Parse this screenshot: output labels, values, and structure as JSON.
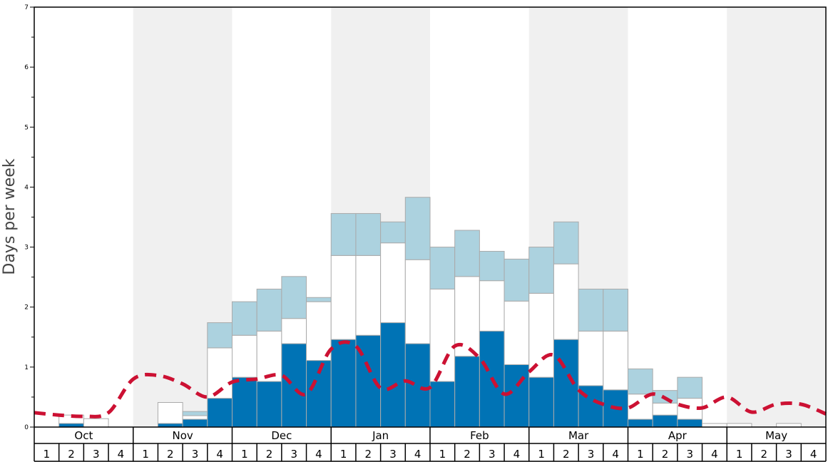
{
  "chart_data": {
    "type": "bar",
    "title": "",
    "xlabel": "",
    "ylabel": "Days per week",
    "ylim": [
      0,
      7
    ],
    "yticks": [
      0,
      1,
      2,
      3,
      4,
      5,
      6,
      7
    ],
    "months": [
      "Oct",
      "Nov",
      "Dec",
      "Jan",
      "Feb",
      "Mar",
      "Apr",
      "May"
    ],
    "weeks": [
      "1",
      "2",
      "3",
      "4"
    ],
    "grid": false,
    "colors": {
      "dark": "#0073b5",
      "white": "#ffffff",
      "light": "#acd2df",
      "line": "#cc1133",
      "shade": "#f0f0f0",
      "bar_edge": "#aaaaaa"
    },
    "series": [
      {
        "values": [
          0.0,
          0.06,
          0.0,
          0.0,
          0.0,
          0.06,
          0.13,
          0.48,
          0.83,
          0.76,
          1.39,
          1.11,
          1.46,
          1.53,
          1.74,
          1.39,
          0.76,
          1.18,
          1.6,
          1.04,
          0.83,
          1.46,
          0.69,
          0.62,
          0.13,
          0.2,
          0.13,
          0.0,
          0.0,
          0.0,
          0.0,
          0.0
        ]
      },
      {
        "values": [
          0.0,
          0.14,
          0.14,
          0.0,
          0.0,
          0.35,
          0.06,
          0.84,
          0.7,
          0.84,
          0.42,
          0.98,
          1.4,
          1.33,
          1.33,
          1.4,
          1.54,
          1.33,
          0.84,
          1.06,
          1.4,
          1.26,
          0.91,
          0.98,
          0.42,
          0.2,
          0.35,
          0.06,
          0.06,
          0.0,
          0.06,
          0.0
        ]
      },
      {
        "values": [
          0.0,
          0.0,
          0.0,
          0.0,
          0.0,
          0.0,
          0.07,
          0.42,
          0.56,
          0.7,
          0.7,
          0.07,
          0.7,
          0.7,
          0.35,
          1.04,
          0.7,
          0.77,
          0.49,
          0.7,
          0.77,
          0.7,
          0.7,
          0.7,
          0.42,
          0.21,
          0.35,
          0.0,
          0.0,
          0.0,
          0.0,
          0.0
        ]
      },
      {
        "values": [
          0.24,
          0.2,
          0.18,
          0.24,
          0.8,
          0.86,
          0.72,
          0.5,
          0.75,
          0.8,
          0.86,
          0.55,
          1.3,
          1.35,
          0.65,
          0.77,
          0.66,
          1.35,
          1.15,
          0.55,
          0.92,
          1.2,
          0.62,
          0.38,
          0.32,
          0.55,
          0.38,
          0.32,
          0.5,
          0.25,
          0.38,
          0.38,
          0.22
        ]
      }
    ]
  }
}
